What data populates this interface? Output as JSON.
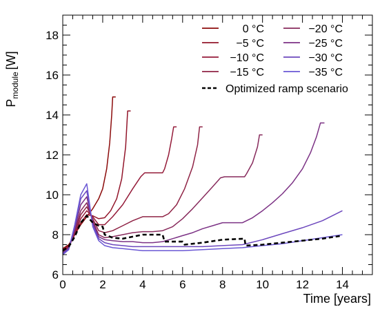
{
  "chart_data": {
    "type": "line",
    "title": "",
    "xlabel": "Time [years]",
    "ylabel_main": "P",
    "ylabel_sub": "module",
    "ylabel_unit": "[W]",
    "xlim": [
      0,
      15.5
    ],
    "ylim": [
      6,
      19
    ],
    "x_ticks": [
      0,
      2,
      4,
      6,
      8,
      10,
      12,
      14
    ],
    "y_ticks": [
      6,
      8,
      10,
      12,
      14,
      16,
      18
    ],
    "grid": false,
    "legend_position": "top-right",
    "series": [
      {
        "name": "0 °C",
        "color": "#8b0a0a",
        "points": [
          [
            0,
            7.3
          ],
          [
            0.3,
            7.5
          ],
          [
            0.6,
            8.0
          ],
          [
            0.9,
            8.5
          ],
          [
            1.2,
            8.9
          ],
          [
            1.5,
            9.3
          ],
          [
            1.8,
            9.8
          ],
          [
            2.0,
            10.3
          ],
          [
            2.2,
            11.3
          ],
          [
            2.35,
            12.6
          ],
          [
            2.45,
            14.0
          ],
          [
            2.5,
            14.9
          ],
          [
            2.65,
            14.9
          ]
        ]
      },
      {
        "name": "−5 °C",
        "color": "#92152a",
        "points": [
          [
            0,
            7.25
          ],
          [
            0.3,
            7.45
          ],
          [
            0.6,
            8.0
          ],
          [
            0.9,
            8.6
          ],
          [
            1.2,
            9.0
          ],
          [
            1.5,
            8.95
          ],
          [
            1.8,
            8.8
          ],
          [
            2.1,
            8.85
          ],
          [
            2.4,
            9.2
          ],
          [
            2.7,
            9.8
          ],
          [
            2.95,
            10.8
          ],
          [
            3.15,
            12.4
          ],
          [
            3.25,
            14.2
          ],
          [
            3.4,
            14.2
          ]
        ]
      },
      {
        "name": "−10 °C",
        "color": "#941a38",
        "points": [
          [
            0,
            7.2
          ],
          [
            0.3,
            7.4
          ],
          [
            0.6,
            8.0
          ],
          [
            0.9,
            8.8
          ],
          [
            1.2,
            9.2
          ],
          [
            1.5,
            8.9
          ],
          [
            1.8,
            8.5
          ],
          [
            2.1,
            8.5
          ],
          [
            2.5,
            8.9
          ],
          [
            3.0,
            9.5
          ],
          [
            3.5,
            10.3
          ],
          [
            3.9,
            10.9
          ],
          [
            4.1,
            11.1
          ],
          [
            5.0,
            11.1
          ],
          [
            5.1,
            11.3
          ],
          [
            5.3,
            12.0
          ],
          [
            5.45,
            12.8
          ],
          [
            5.55,
            13.4
          ],
          [
            5.7,
            13.4
          ]
        ]
      },
      {
        "name": "−15 °C",
        "color": "#8f2345",
        "points": [
          [
            0,
            7.15
          ],
          [
            0.3,
            7.4
          ],
          [
            0.6,
            8.1
          ],
          [
            0.9,
            9.0
          ],
          [
            1.2,
            9.4
          ],
          [
            1.5,
            8.8
          ],
          [
            1.8,
            8.2
          ],
          [
            2.1,
            8.1
          ],
          [
            2.5,
            8.2
          ],
          [
            3.0,
            8.45
          ],
          [
            3.5,
            8.7
          ],
          [
            4.0,
            8.9
          ],
          [
            5.0,
            8.9
          ],
          [
            5.3,
            9.05
          ],
          [
            5.7,
            9.5
          ],
          [
            6.1,
            10.3
          ],
          [
            6.5,
            11.4
          ],
          [
            6.75,
            12.5
          ],
          [
            6.85,
            13.4
          ],
          [
            7.0,
            13.4
          ]
        ]
      },
      {
        "name": "−20 °C",
        "color": "#872a5c",
        "points": [
          [
            0,
            7.1
          ],
          [
            0.3,
            7.35
          ],
          [
            0.6,
            8.2
          ],
          [
            0.9,
            9.2
          ],
          [
            1.2,
            9.6
          ],
          [
            1.5,
            8.7
          ],
          [
            1.8,
            8.0
          ],
          [
            2.1,
            7.85
          ],
          [
            2.5,
            7.9
          ],
          [
            3.0,
            8.0
          ],
          [
            3.5,
            8.1
          ],
          [
            4.0,
            8.15
          ],
          [
            4.5,
            8.15
          ],
          [
            5.0,
            8.2
          ],
          [
            5.5,
            8.4
          ],
          [
            6.0,
            8.8
          ],
          [
            6.5,
            9.3
          ],
          [
            7.0,
            9.85
          ],
          [
            7.5,
            10.4
          ],
          [
            7.9,
            10.85
          ],
          [
            8.1,
            10.9
          ],
          [
            9.1,
            10.9
          ],
          [
            9.2,
            11.05
          ],
          [
            9.5,
            11.6
          ],
          [
            9.75,
            12.4
          ],
          [
            9.85,
            13.0
          ],
          [
            10.0,
            13.0
          ]
        ]
      },
      {
        "name": "−25 °C",
        "color": "#7b3184",
        "points": [
          [
            0,
            7.1
          ],
          [
            0.3,
            7.3
          ],
          [
            0.6,
            8.3
          ],
          [
            0.9,
            9.5
          ],
          [
            1.2,
            9.9
          ],
          [
            1.5,
            8.6
          ],
          [
            1.8,
            7.9
          ],
          [
            2.1,
            7.75
          ],
          [
            2.5,
            7.7
          ],
          [
            3.0,
            7.65
          ],
          [
            3.5,
            7.65
          ],
          [
            4.0,
            7.6
          ],
          [
            4.5,
            7.6
          ],
          [
            5.0,
            7.65
          ],
          [
            5.5,
            7.8
          ],
          [
            6.0,
            7.95
          ],
          [
            6.5,
            8.1
          ],
          [
            7.0,
            8.3
          ],
          [
            7.5,
            8.45
          ],
          [
            8.0,
            8.6
          ],
          [
            9.0,
            8.6
          ],
          [
            9.5,
            8.85
          ],
          [
            10.0,
            9.2
          ],
          [
            10.5,
            9.6
          ],
          [
            11.0,
            10.05
          ],
          [
            11.5,
            10.6
          ],
          [
            12.0,
            11.3
          ],
          [
            12.4,
            12.1
          ],
          [
            12.7,
            12.9
          ],
          [
            12.9,
            13.6
          ],
          [
            13.1,
            13.6
          ]
        ]
      },
      {
        "name": "−30 °C",
        "color": "#6c47bd",
        "points": [
          [
            0,
            7.05
          ],
          [
            0.3,
            7.3
          ],
          [
            0.6,
            8.4
          ],
          [
            0.9,
            9.8
          ],
          [
            1.2,
            10.2
          ],
          [
            1.5,
            8.5
          ],
          [
            1.8,
            7.8
          ],
          [
            2.1,
            7.6
          ],
          [
            2.5,
            7.5
          ],
          [
            3.0,
            7.45
          ],
          [
            3.5,
            7.4
          ],
          [
            4.0,
            7.4
          ],
          [
            5.0,
            7.4
          ],
          [
            6.0,
            7.4
          ],
          [
            7.0,
            7.4
          ],
          [
            8.0,
            7.45
          ],
          [
            9.0,
            7.5
          ],
          [
            10.0,
            7.75
          ],
          [
            11.0,
            8.05
          ],
          [
            12.0,
            8.35
          ],
          [
            13.0,
            8.7
          ],
          [
            14.0,
            9.2
          ]
        ]
      },
      {
        "name": "−35 °C",
        "color": "#6a57d4",
        "points": [
          [
            0,
            7.0
          ],
          [
            0.3,
            7.25
          ],
          [
            0.6,
            8.5
          ],
          [
            0.9,
            10.0
          ],
          [
            1.2,
            10.55
          ],
          [
            1.5,
            8.4
          ],
          [
            1.8,
            7.7
          ],
          [
            2.1,
            7.45
          ],
          [
            2.5,
            7.35
          ],
          [
            3.0,
            7.3
          ],
          [
            3.5,
            7.25
          ],
          [
            4.0,
            7.2
          ],
          [
            5.0,
            7.2
          ],
          [
            6.0,
            7.2
          ],
          [
            7.0,
            7.25
          ],
          [
            8.0,
            7.3
          ],
          [
            9.0,
            7.35
          ],
          [
            10.0,
            7.45
          ],
          [
            11.0,
            7.55
          ],
          [
            12.0,
            7.7
          ],
          [
            13.0,
            7.85
          ],
          [
            14.0,
            8.0
          ]
        ]
      },
      {
        "name": "Optimized ramp scenario",
        "color": "#000000",
        "dashed": true,
        "points": [
          [
            0,
            7.2
          ],
          [
            0.3,
            7.4
          ],
          [
            0.6,
            7.9
          ],
          [
            0.9,
            8.6
          ],
          [
            1.2,
            8.95
          ],
          [
            1.5,
            8.6
          ],
          [
            1.8,
            8.45
          ],
          [
            2.0,
            8.4
          ],
          [
            2.1,
            8.0
          ],
          [
            2.5,
            7.85
          ],
          [
            3.0,
            7.8
          ],
          [
            3.5,
            7.9
          ],
          [
            4.0,
            8.0
          ],
          [
            5.0,
            8.0
          ],
          [
            5.1,
            7.65
          ],
          [
            6.0,
            7.65
          ],
          [
            6.1,
            7.5
          ],
          [
            7.0,
            7.6
          ],
          [
            8.0,
            7.75
          ],
          [
            9.1,
            7.8
          ],
          [
            9.15,
            7.45
          ],
          [
            10.0,
            7.5
          ],
          [
            11.0,
            7.6
          ],
          [
            12.0,
            7.7
          ],
          [
            13.0,
            7.8
          ],
          [
            14.0,
            7.95
          ]
        ]
      }
    ]
  }
}
